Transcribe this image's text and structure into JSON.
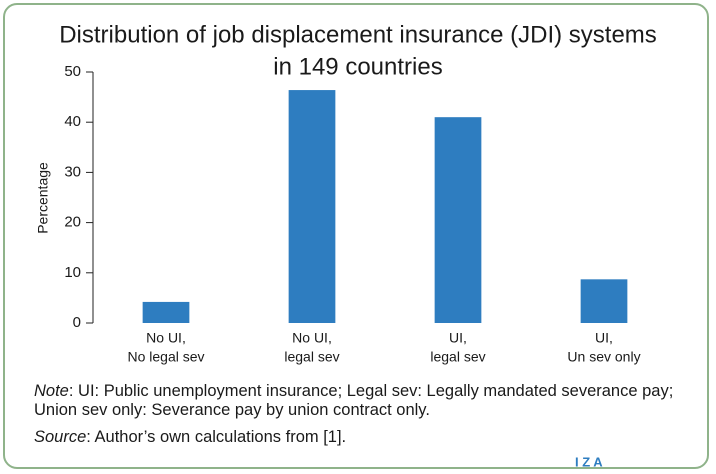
{
  "chart_data": {
    "type": "bar",
    "title": [
      "Distribution of job displacement insurance (JDI) systems",
      "in 149 countries"
    ],
    "ylabel": "Percentage",
    "categories": [
      [
        "No UI,",
        "No legal sev"
      ],
      [
        "No UI,",
        "legal sev"
      ],
      [
        "UI,",
        "legal sev"
      ],
      [
        "UI,",
        "Un sev only"
      ]
    ],
    "values": [
      4.2,
      46.4,
      41.0,
      8.7
    ],
    "color": "#2e7dc0",
    "ylim": [
      0,
      50
    ],
    "yticks": [
      0,
      10,
      20,
      30,
      40,
      50
    ],
    "grid": false,
    "note": {
      "label": "Note",
      "text": ": UI: Public unemployment insurance; Legal sev: Legally mandated severance pay; Union sev only: Severance pay by union contract only."
    },
    "source": {
      "label": "Source",
      "text": ": Author’s own calculations from [1]."
    },
    "logo": "I Z A"
  }
}
